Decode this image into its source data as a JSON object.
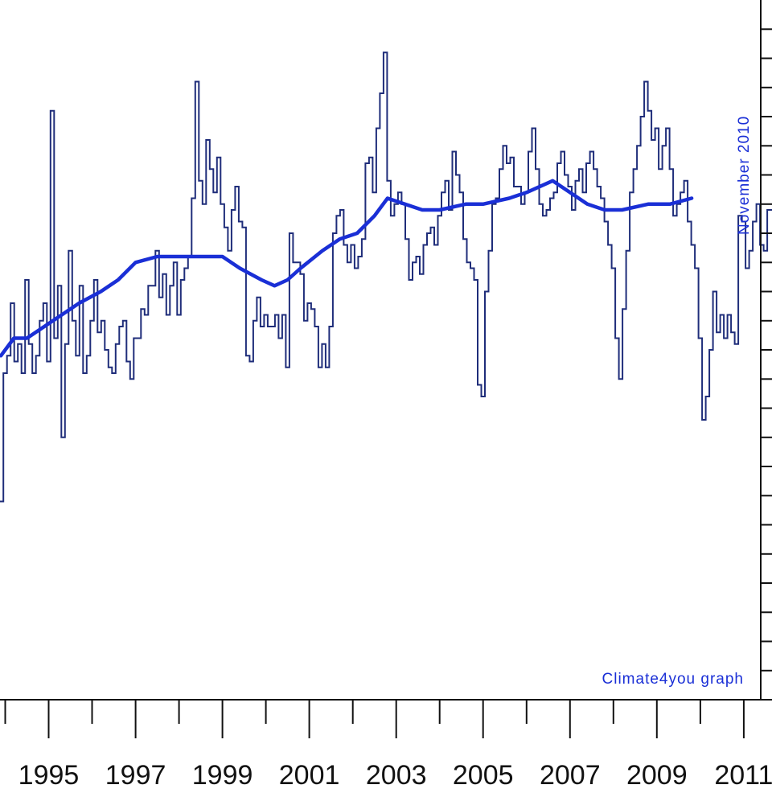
{
  "chart_data": {
    "type": "line",
    "xlim": [
      1993.88,
      2011.65
    ],
    "ylim": [
      -0.6,
      0.6
    ],
    "x_tick_labels": [
      "1995",
      "1997",
      "1999",
      "2001",
      "2003",
      "2005",
      "2007",
      "2009",
      "2011"
    ],
    "x_tick_values": [
      1995,
      1997,
      1999,
      2001,
      2003,
      2005,
      2007,
      2009,
      2011
    ],
    "annotation": "November 2010",
    "credit": "Climate4you graph",
    "grid": false,
    "colors": {
      "monthly": "#1f2d7a",
      "running_mean": "#1a2fd6",
      "text": "#1a2fd6",
      "axes": "#111111"
    },
    "series": [
      {
        "type": "step",
        "start_year": 1993.875,
        "step": 0.0833333,
        "values": [
          -0.26,
          -0.04,
          -0.01,
          0.08,
          -0.02,
          0.01,
          -0.04,
          0.12,
          0.01,
          -0.04,
          -0.01,
          0.05,
          0.08,
          -0.02,
          0.41,
          0.02,
          0.11,
          -0.15,
          0.01,
          0.17,
          0.05,
          -0.01,
          0.11,
          -0.04,
          -0.01,
          0.05,
          0.12,
          0.03,
          0.05,
          0.0,
          -0.03,
          -0.04,
          0.01,
          0.04,
          0.05,
          -0.02,
          -0.05,
          0.02,
          0.02,
          0.07,
          0.06,
          0.11,
          0.11,
          0.17,
          0.09,
          0.13,
          0.06,
          0.11,
          0.15,
          0.06,
          0.12,
          0.14,
          0.16,
          0.26,
          0.46,
          0.29,
          0.25,
          0.36,
          0.31,
          0.27,
          0.33,
          0.25,
          0.21,
          0.17,
          0.24,
          0.28,
          0.22,
          0.21,
          -0.01,
          -0.02,
          0.05,
          0.09,
          0.04,
          0.06,
          0.04,
          0.04,
          0.06,
          0.02,
          0.06,
          -0.03,
          0.2,
          0.15,
          0.15,
          0.13,
          0.05,
          0.08,
          0.07,
          0.04,
          -0.03,
          0.01,
          -0.03,
          0.04,
          0.2,
          0.23,
          0.24,
          0.18,
          0.15,
          0.18,
          0.14,
          0.16,
          0.19,
          0.32,
          0.33,
          0.27,
          0.38,
          0.44,
          0.51,
          0.29,
          0.23,
          0.25,
          0.27,
          0.25,
          0.19,
          0.12,
          0.15,
          0.16,
          0.13,
          0.18,
          0.2,
          0.21,
          0.18,
          0.23,
          0.27,
          0.29,
          0.24,
          0.34,
          0.3,
          0.27,
          0.19,
          0.15,
          0.14,
          0.12,
          -0.06,
          -0.08,
          0.1,
          0.17,
          0.25,
          0.26,
          0.31,
          0.35,
          0.32,
          0.33,
          0.28,
          0.28,
          0.25,
          0.27,
          0.34,
          0.38,
          0.31,
          0.25,
          0.23,
          0.24,
          0.26,
          0.27,
          0.32,
          0.34,
          0.3,
          0.28,
          0.24,
          0.29,
          0.31,
          0.27,
          0.32,
          0.34,
          0.31,
          0.28,
          0.26,
          0.22,
          0.18,
          0.14,
          0.02,
          -0.05,
          0.07,
          0.17,
          0.27,
          0.31,
          0.35,
          0.4,
          0.46,
          0.41,
          0.36,
          0.38,
          0.31,
          0.35,
          0.38,
          0.31,
          0.23,
          0.25,
          0.27,
          0.29,
          0.22,
          0.18,
          0.14,
          0.02,
          -0.12,
          -0.08,
          0.0,
          0.1,
          0.03,
          0.06,
          0.02,
          0.06,
          0.03,
          0.01,
          0.23,
          0.22,
          0.14,
          0.17,
          0.22,
          0.25,
          0.18,
          0.17,
          0.24,
          0.24,
          0.23,
          0.19,
          0.28,
          0.26,
          0.33,
          0.27,
          0.3,
          0.26,
          0.34,
          0.35,
          0.31,
          0.3,
          0.34,
          0.42,
          0.43,
          0.39,
          0.33,
          0.23,
          0.21,
          0.24,
          0.25,
          0.24,
          0.27,
          0.33,
          0.37
        ]
      },
      {
        "type": "running_mean",
        "x": [
          1993.9,
          1994.2,
          1994.5,
          1994.9,
          1995.3,
          1995.7,
          1996.2,
          1996.6,
          1997.0,
          1997.5,
          1998.0,
          1998.6,
          1999.0,
          1999.4,
          1999.9,
          2000.2,
          2000.5,
          2000.8,
          2001.3,
          2001.7,
          2002.1,
          2002.5,
          2002.8,
          2003.2,
          2003.6,
          2004.0,
          2004.6,
          2005.0,
          2005.6,
          2006.0,
          2006.6,
          2007.0,
          2007.4,
          2007.8,
          2008.2,
          2008.8,
          2009.3,
          2009.8
        ],
        "values": [
          -0.01,
          0.02,
          0.02,
          0.04,
          0.06,
          0.08,
          0.1,
          0.12,
          0.15,
          0.16,
          0.16,
          0.16,
          0.16,
          0.14,
          0.12,
          0.11,
          0.12,
          0.14,
          0.17,
          0.19,
          0.2,
          0.23,
          0.26,
          0.25,
          0.24,
          0.24,
          0.25,
          0.25,
          0.26,
          0.27,
          0.29,
          0.27,
          0.25,
          0.24,
          0.24,
          0.25,
          0.25,
          0.26
        ]
      }
    ]
  }
}
